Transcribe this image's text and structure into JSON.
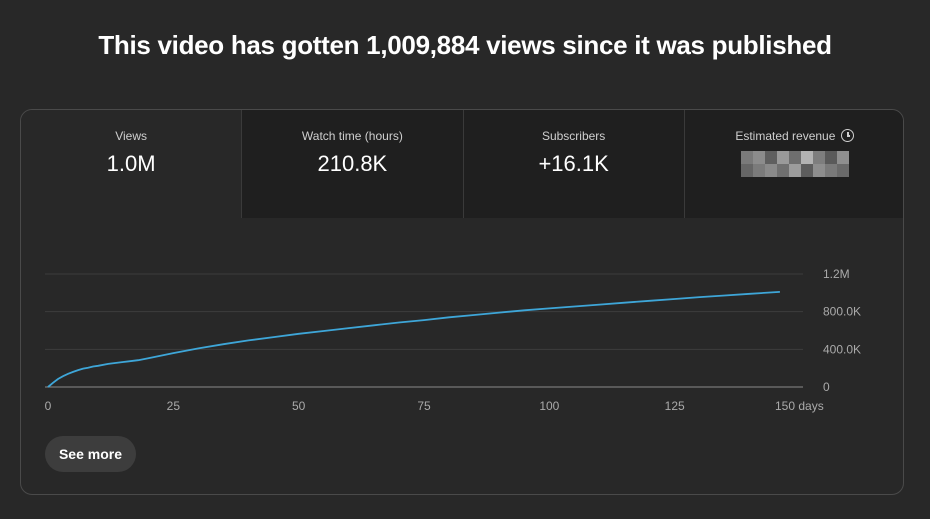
{
  "headline": "This video has gotten 1,009,884 views since it was published",
  "metrics": [
    {
      "label": "Views",
      "value": "1.0M",
      "selected": true
    },
    {
      "label": "Watch time (hours)",
      "value": "210.8K",
      "selected": false
    },
    {
      "label": "Subscribers",
      "value": "+16.1K",
      "selected": false
    },
    {
      "label": "Estimated revenue",
      "value": "",
      "icon": "clock-icon",
      "redacted": true,
      "selected": false
    }
  ],
  "colors": {
    "background": "#282828",
    "line": "#3ea6d8",
    "grid": "#3d3d3d",
    "text_muted": "#aaaaaa"
  },
  "see_more_label": "See more",
  "chart_data": {
    "type": "line",
    "x_tick_labels": [
      "0",
      "25",
      "50",
      "75",
      "100",
      "125",
      "150 days"
    ],
    "x_ticks": [
      0,
      25,
      50,
      75,
      100,
      125,
      150
    ],
    "y_tick_labels": [
      "0",
      "400.0K",
      "800.0K",
      "1.2M"
    ],
    "y_ticks": [
      0,
      400000,
      800000,
      1200000
    ],
    "xlim": [
      0,
      150
    ],
    "ylim": [
      0,
      1200000
    ],
    "grid": true,
    "series": [
      {
        "x": [
          0,
          1,
          2,
          3,
          4,
          5,
          6,
          7,
          8,
          9,
          10,
          12,
          15,
          18,
          20,
          25,
          30,
          35,
          40,
          45,
          50,
          55,
          60,
          65,
          70,
          75,
          80,
          85,
          90,
          95,
          100,
          105,
          110,
          115,
          120,
          125,
          130,
          135,
          140,
          146
        ],
        "values": [
          0,
          45000,
          85000,
          115000,
          140000,
          160000,
          180000,
          195000,
          205000,
          218000,
          225000,
          245000,
          265000,
          285000,
          305000,
          360000,
          410000,
          455000,
          495000,
          530000,
          565000,
          595000,
          625000,
          655000,
          685000,
          710000,
          740000,
          765000,
          790000,
          815000,
          835000,
          855000,
          875000,
          895000,
          915000,
          935000,
          955000,
          972000,
          990000,
          1009884
        ]
      }
    ]
  }
}
